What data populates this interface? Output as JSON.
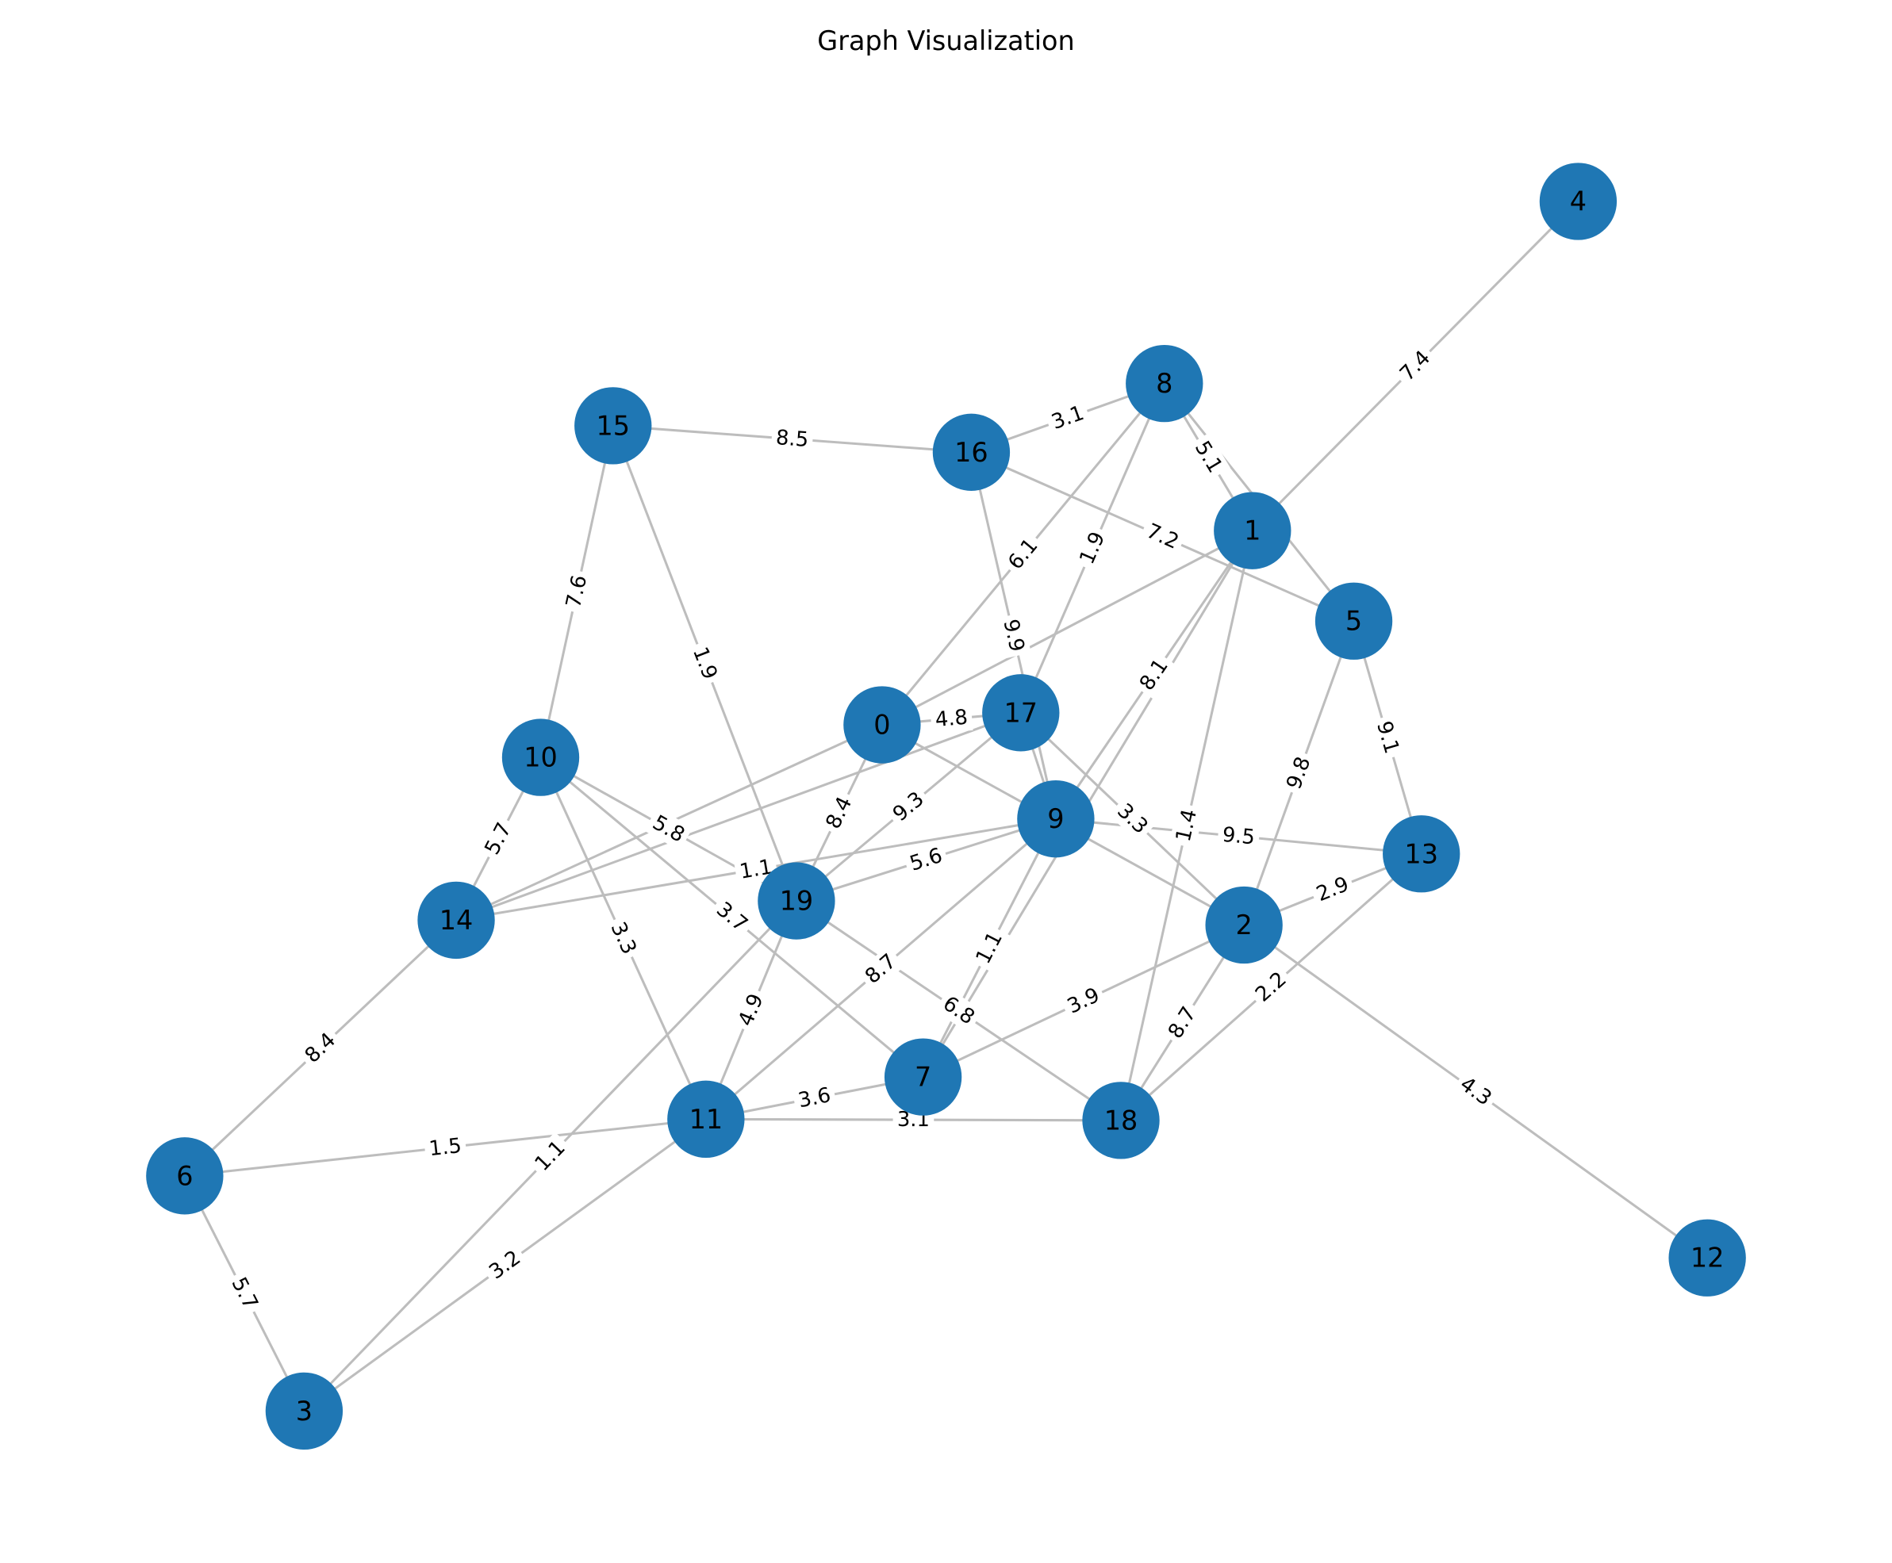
{
  "title": "Graph Visualization",
  "nodes": [
    {
      "label": "0"
    },
    {
      "label": "1"
    },
    {
      "label": "2"
    },
    {
      "label": "3"
    },
    {
      "label": "4"
    },
    {
      "label": "5"
    },
    {
      "label": "6"
    },
    {
      "label": "7"
    },
    {
      "label": "8"
    },
    {
      "label": "9"
    },
    {
      "label": "10"
    },
    {
      "label": "11"
    },
    {
      "label": "12"
    },
    {
      "label": "13"
    },
    {
      "label": "14"
    },
    {
      "label": "15"
    },
    {
      "label": "16"
    },
    {
      "label": "17"
    },
    {
      "label": "18"
    },
    {
      "label": "19"
    }
  ],
  "edges": [
    {
      "nodes": [
        15,
        16
      ],
      "weight": "8.5"
    },
    {
      "nodes": [
        16,
        8
      ],
      "weight": "3.1"
    },
    {
      "nodes": [
        15,
        10
      ],
      "weight": "7.6"
    },
    {
      "nodes": [
        15,
        19
      ],
      "weight": "1.9"
    },
    {
      "nodes": [
        16,
        5
      ],
      "weight": "7.2"
    },
    {
      "nodes": [
        16,
        9
      ],
      "weight": "9.9"
    },
    {
      "nodes": [
        8,
        0
      ],
      "weight": "6.1"
    },
    {
      "nodes": [
        8,
        17
      ],
      "weight": "1.9"
    },
    {
      "nodes": [
        8,
        1
      ],
      "weight": "5.1"
    },
    {
      "nodes": [
        8,
        5
      ]
    },
    {
      "nodes": [
        4,
        1
      ],
      "weight": "7.4"
    },
    {
      "nodes": [
        1,
        0
      ]
    },
    {
      "nodes": [
        1,
        9
      ],
      "weight": "8.1"
    },
    {
      "nodes": [
        1,
        7
      ]
    },
    {
      "nodes": [
        1,
        18
      ],
      "weight": "1.4"
    },
    {
      "nodes": [
        5,
        13
      ],
      "weight": "9.1"
    },
    {
      "nodes": [
        5,
        2
      ],
      "weight": "9.8"
    },
    {
      "nodes": [
        13,
        9
      ],
      "weight": "9.5"
    },
    {
      "nodes": [
        13,
        2
      ],
      "weight": "2.9"
    },
    {
      "nodes": [
        13,
        18
      ],
      "weight": "2.2"
    },
    {
      "nodes": [
        2,
        12
      ],
      "weight": "4.3"
    },
    {
      "nodes": [
        2,
        18
      ],
      "weight": "8.7"
    },
    {
      "nodes": [
        2,
        7
      ],
      "weight": "3.9"
    },
    {
      "nodes": [
        17,
        2
      ],
      "weight": "3.3"
    },
    {
      "nodes": [
        0,
        2
      ]
    },
    {
      "nodes": [
        0,
        17
      ],
      "weight": "4.8"
    },
    {
      "nodes": [
        0,
        14
      ]
    },
    {
      "nodes": [
        17,
        14
      ]
    },
    {
      "nodes": [
        0,
        19
      ],
      "weight": "8.4"
    },
    {
      "nodes": [
        17,
        19
      ],
      "weight": "9.3"
    },
    {
      "nodes": [
        17,
        9
      ]
    },
    {
      "nodes": [
        14,
        9
      ],
      "weight": "1.1"
    },
    {
      "nodes": [
        9,
        19
      ],
      "weight": "5.6"
    },
    {
      "nodes": [
        9,
        11
      ],
      "weight": "8.7"
    },
    {
      "nodes": [
        9,
        7
      ],
      "weight": "1.1"
    },
    {
      "nodes": [
        10,
        19
      ],
      "weight": "5.8"
    },
    {
      "nodes": [
        10,
        7
      ],
      "weight": "3.7"
    },
    {
      "nodes": [
        10,
        11
      ],
      "weight": "3.3"
    },
    {
      "nodes": [
        10,
        14
      ],
      "weight": "5.7"
    },
    {
      "nodes": [
        14,
        6
      ],
      "weight": "8.4"
    },
    {
      "nodes": [
        6,
        3
      ],
      "weight": "5.7"
    },
    {
      "nodes": [
        6,
        11
      ],
      "weight": "1.5"
    },
    {
      "nodes": [
        3,
        11
      ],
      "weight": "3.2"
    },
    {
      "nodes": [
        3,
        19
      ],
      "weight": "1.1"
    },
    {
      "nodes": [
        19,
        11
      ],
      "weight": "4.9"
    },
    {
      "nodes": [
        19,
        18
      ],
      "weight": "6.8"
    },
    {
      "nodes": [
        11,
        7
      ],
      "weight": "3.6"
    },
    {
      "nodes": [
        11,
        18
      ],
      "weight": "3.1"
    }
  ]
}
